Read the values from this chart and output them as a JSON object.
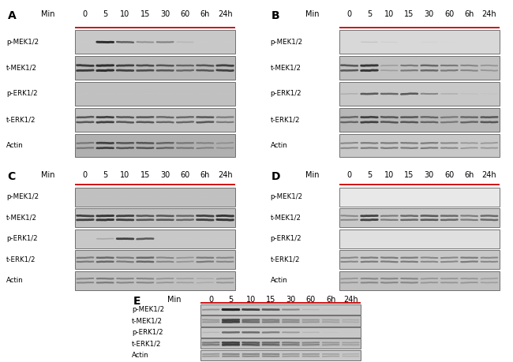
{
  "time_labels": [
    "0",
    "5",
    "10",
    "15",
    "30",
    "60",
    "6h",
    "24h"
  ],
  "row_labels": [
    "p-MEK1/2",
    "t-MEK1/2",
    "p-ERK1/2",
    "t-ERK1/2",
    "Actin"
  ],
  "red_line_color": "#cc0000",
  "panel_A_intensities": {
    "p-MEK1/2": [
      0.05,
      0.85,
      0.7,
      0.55,
      0.6,
      0.38,
      0.12,
      0.08
    ],
    "t-MEK1/2": [
      0.8,
      0.85,
      0.78,
      0.75,
      0.72,
      0.68,
      0.72,
      0.78
    ],
    "p-ERK1/2": [
      0.08,
      0.1,
      0.12,
      0.1,
      0.12,
      0.1,
      0.08,
      0.08
    ],
    "t-ERK1/2": [
      0.72,
      0.78,
      0.72,
      0.72,
      0.68,
      0.68,
      0.72,
      0.62
    ],
    "Actin": [
      0.62,
      0.78,
      0.72,
      0.72,
      0.68,
      0.62,
      0.58,
      0.52
    ]
  },
  "panel_B_intensities": {
    "p-MEK1/2": [
      0.08,
      0.35,
      0.28,
      0.15,
      0.25,
      0.18,
      0.12,
      0.12
    ],
    "t-MEK1/2": [
      0.72,
      0.82,
      0.48,
      0.62,
      0.68,
      0.62,
      0.58,
      0.52
    ],
    "p-ERK1/2": [
      0.42,
      0.72,
      0.68,
      0.72,
      0.58,
      0.42,
      0.32,
      0.28
    ],
    "t-ERK1/2": [
      0.68,
      0.78,
      0.72,
      0.72,
      0.68,
      0.62,
      0.68,
      0.72
    ],
    "Actin": [
      0.58,
      0.62,
      0.62,
      0.62,
      0.62,
      0.58,
      0.52,
      0.52
    ]
  },
  "panel_C_intensities": {
    "p-MEK1/2": [
      0.15,
      0.18,
      0.18,
      0.15,
      0.12,
      0.12,
      0.12,
      0.12
    ],
    "t-MEK1/2": [
      0.78,
      0.82,
      0.78,
      0.72,
      0.72,
      0.68,
      0.78,
      0.82
    ],
    "p-ERK1/2": [
      0.06,
      0.45,
      0.78,
      0.72,
      0.18,
      0.08,
      0.06,
      0.06
    ],
    "t-ERK1/2": [
      0.62,
      0.68,
      0.62,
      0.68,
      0.58,
      0.52,
      0.62,
      0.58
    ],
    "Actin": [
      0.58,
      0.62,
      0.58,
      0.58,
      0.52,
      0.48,
      0.42,
      0.52
    ]
  },
  "panel_D_intensities": {
    "p-MEK1/2": [
      0.04,
      0.04,
      0.04,
      0.04,
      0.04,
      0.04,
      0.04,
      0.04
    ],
    "t-MEK1/2": [
      0.58,
      0.78,
      0.62,
      0.68,
      0.72,
      0.68,
      0.62,
      0.68
    ],
    "p-ERK1/2": [
      0.06,
      0.06,
      0.06,
      0.06,
      0.06,
      0.06,
      0.06,
      0.06
    ],
    "t-ERK1/2": [
      0.58,
      0.62,
      0.62,
      0.62,
      0.58,
      0.58,
      0.62,
      0.58
    ],
    "Actin": [
      0.52,
      0.58,
      0.58,
      0.58,
      0.52,
      0.52,
      0.52,
      0.48
    ]
  },
  "panel_E_intensities": {
    "p-MEK1/2": [
      0.55,
      0.88,
      0.78,
      0.72,
      0.58,
      0.38,
      0.28,
      0.22
    ],
    "t-MEK1/2": [
      0.52,
      0.78,
      0.68,
      0.62,
      0.58,
      0.52,
      0.48,
      0.42
    ],
    "p-ERK1/2": [
      0.38,
      0.68,
      0.68,
      0.62,
      0.52,
      0.38,
      0.28,
      0.22
    ],
    "t-ERK1/2": [
      0.62,
      0.78,
      0.72,
      0.68,
      0.62,
      0.58,
      0.52,
      0.48
    ],
    "Actin": [
      0.52,
      0.58,
      0.58,
      0.58,
      0.52,
      0.52,
      0.48,
      0.42
    ]
  },
  "bg_colors": {
    "A": {
      "p-MEK1/2": "#c8c8c8",
      "t-MEK1/2": "#b8b8b8",
      "p-ERK1/2": "#c0c0c0",
      "t-ERK1/2": "#c0c0c0",
      "Actin": "#b0b0b0"
    },
    "B": {
      "p-MEK1/2": "#d8d8d8",
      "t-MEK1/2": "#c0c0c0",
      "p-ERK1/2": "#c8c8c8",
      "t-ERK1/2": "#b8b8b8",
      "Actin": "#c8c8c8"
    },
    "C": {
      "p-MEK1/2": "#c0c0c0",
      "t-MEK1/2": "#c0c0c0",
      "p-ERK1/2": "#c8c8c8",
      "t-ERK1/2": "#c0c0c0",
      "Actin": "#c0c0c0"
    },
    "D": {
      "p-MEK1/2": "#e8e8e8",
      "t-MEK1/2": "#c8c8c8",
      "p-ERK1/2": "#e0e0e0",
      "t-ERK1/2": "#c8c8c8",
      "Actin": "#c0c0c0"
    },
    "E": {
      "p-MEK1/2": "#c8c8c8",
      "t-MEK1/2": "#c0c0c0",
      "p-ERK1/2": "#c8c8c8",
      "t-ERK1/2": "#c0c0c0",
      "Actin": "#c8c8c8"
    }
  }
}
